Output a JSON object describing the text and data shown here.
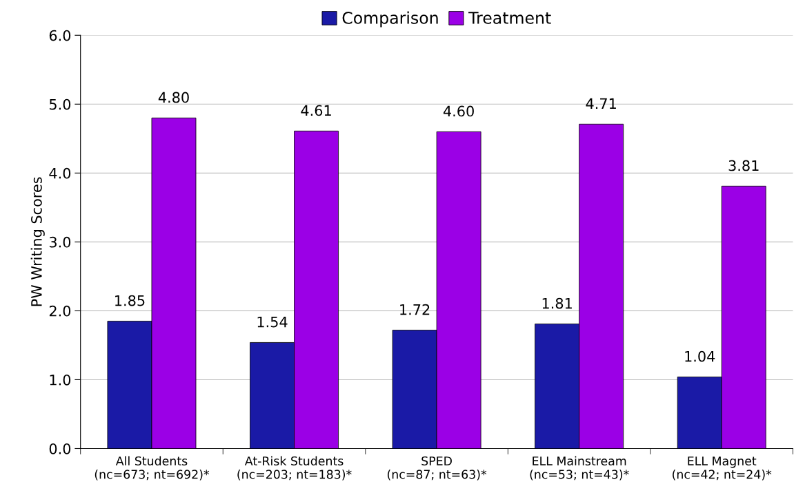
{
  "chart_data": {
    "type": "bar",
    "ylabel": "PW Writing Scores",
    "categories": [
      "All Students\n(nc=673; nt=692)*",
      "At-Risk Students\n(nc=203; nt=183)*",
      "SPED\n(nc=87; nt=63)*",
      "ELL Mainstream\n(nc=53; nt=43)*",
      "ELL Magnet\n(nc=42; nt=24)*"
    ],
    "series": [
      {
        "name": "Comparison",
        "color": "#1a1aa6",
        "values": [
          1.85,
          1.54,
          1.72,
          1.81,
          1.04
        ],
        "value_labels": [
          "1.85",
          "1.54",
          "1.72",
          "1.81",
          "1.04"
        ]
      },
      {
        "name": "Treatment",
        "color": "#9b00e6",
        "values": [
          4.8,
          4.61,
          4.6,
          4.71,
          3.81
        ],
        "value_labels": [
          "4.80",
          "4.61",
          "4.60",
          "4.71",
          "3.81"
        ]
      }
    ],
    "ylim": [
      0,
      6
    ],
    "yticks": [
      {
        "value": 0,
        "label": "0.0"
      },
      {
        "value": 1,
        "label": "1.0"
      },
      {
        "value": 2,
        "label": "2.0"
      },
      {
        "value": 3,
        "label": "3.0"
      },
      {
        "value": 4,
        "label": "4.0"
      },
      {
        "value": 5,
        "label": "5.0"
      },
      {
        "value": 6,
        "label": "6.0"
      }
    ],
    "grid": "y",
    "legend": "top"
  }
}
